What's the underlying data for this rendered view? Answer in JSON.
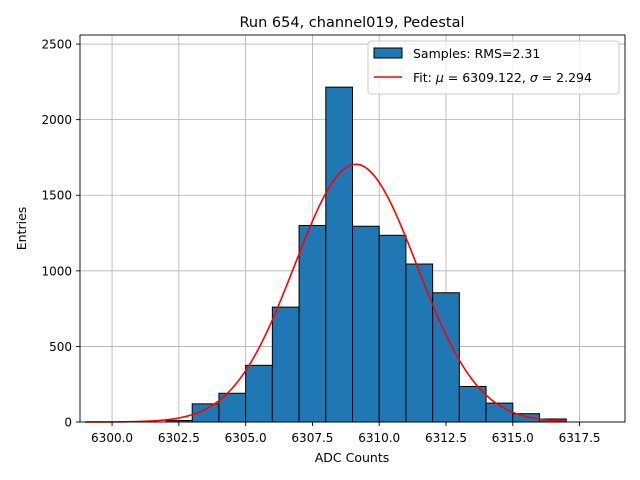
{
  "chart_data": {
    "type": "bar",
    "title": "Run 654, channel019, Pedestal",
    "xlabel": "ADC Counts",
    "ylabel": "Entries",
    "xlim": [
      6298.8,
      6319.2
    ],
    "ylim": [
      0,
      2560
    ],
    "xticks": [
      6300.0,
      6302.5,
      6305.0,
      6307.5,
      6310.0,
      6312.5,
      6315.0,
      6317.5
    ],
    "xtick_labels": [
      "6300.0",
      "6302.5",
      "6305.0",
      "6307.5",
      "6310.0",
      "6312.5",
      "6315.0",
      "6317.5"
    ],
    "yticks": [
      0,
      500,
      1000,
      1500,
      2000,
      2500
    ],
    "ytick_labels": [
      "0",
      "500",
      "1000",
      "1500",
      "2000",
      "2500"
    ],
    "grid": true,
    "legend_position": "upper right",
    "histogram": {
      "name": "Samples: RMS=2.31",
      "color": "#1f77b4",
      "edgecolor": "#000000",
      "bin_edges": [
        6302,
        6303,
        6304,
        6305,
        6306,
        6307,
        6308,
        6309,
        6310,
        6311,
        6312,
        6313,
        6314,
        6315,
        6316,
        6317
      ],
      "counts": [
        10,
        120,
        190,
        375,
        760,
        1300,
        2215,
        1295,
        1235,
        1045,
        855,
        235,
        125,
        55,
        20
      ]
    },
    "fit": {
      "name": "Fit: μ = 6309.122, σ = 2.294",
      "name_prefix": "Fit: ",
      "mu_symbol": "μ",
      "mu_text": " = 6309.122, ",
      "sigma_symbol": "σ",
      "sigma_text": " = 2.294",
      "color": "#ff0000",
      "mu": 6309.122,
      "sigma": 2.294,
      "amplitude": 1705,
      "x_range": [
        6299,
        6317
      ]
    },
    "legend": {
      "hist_prefix": "Samples: RMS=2.31"
    }
  }
}
